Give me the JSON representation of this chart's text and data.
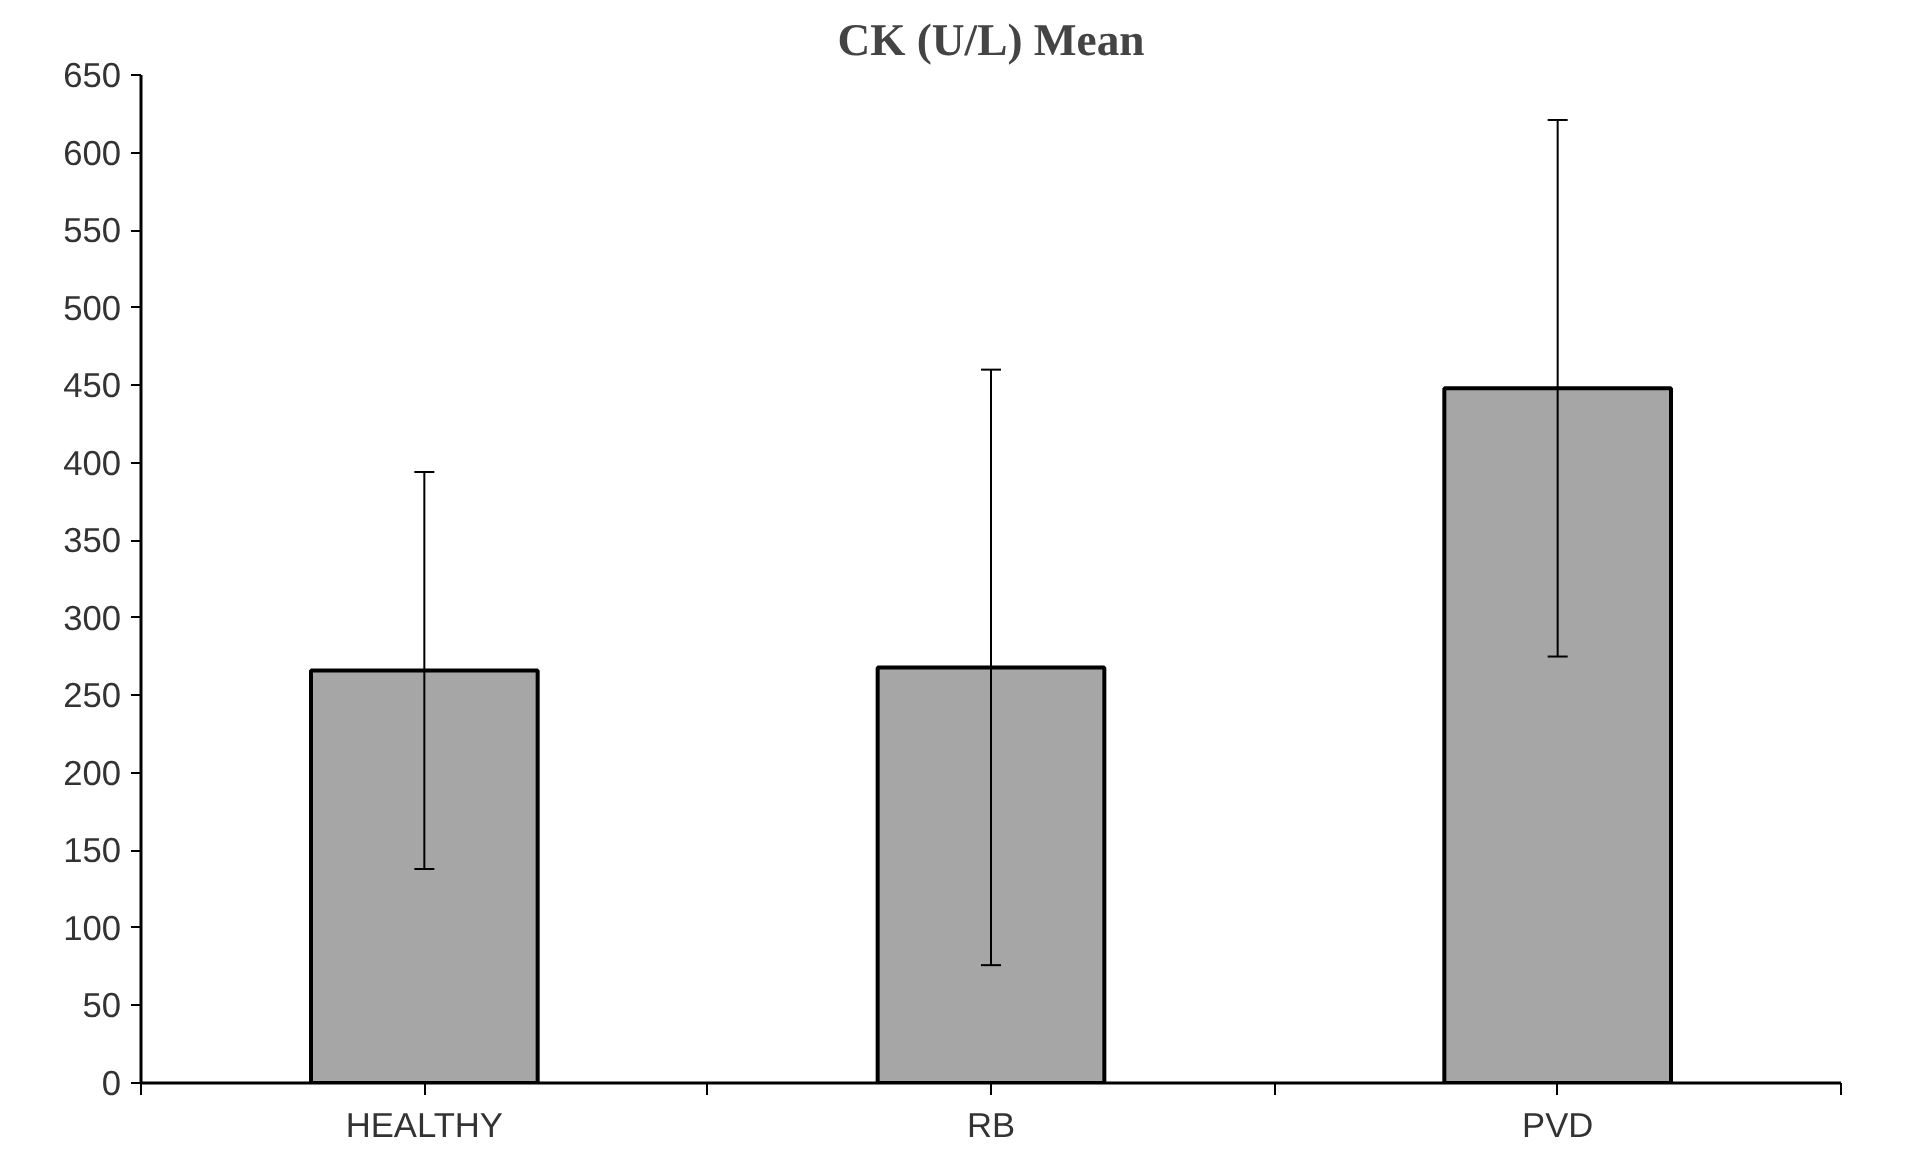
{
  "chart_data": {
    "type": "bar",
    "title": "CK (U/L) Mean",
    "categories": [
      "HEALTHY",
      "RB",
      "PVD"
    ],
    "values": [
      266,
      268,
      448
    ],
    "errors": [
      128,
      192,
      173
    ],
    "color": "#a6a6a6",
    "ylim": [
      0,
      650
    ],
    "yticks": [
      0,
      50,
      100,
      150,
      200,
      250,
      300,
      350,
      400,
      450,
      500,
      550,
      600,
      650
    ],
    "grid": false
  }
}
